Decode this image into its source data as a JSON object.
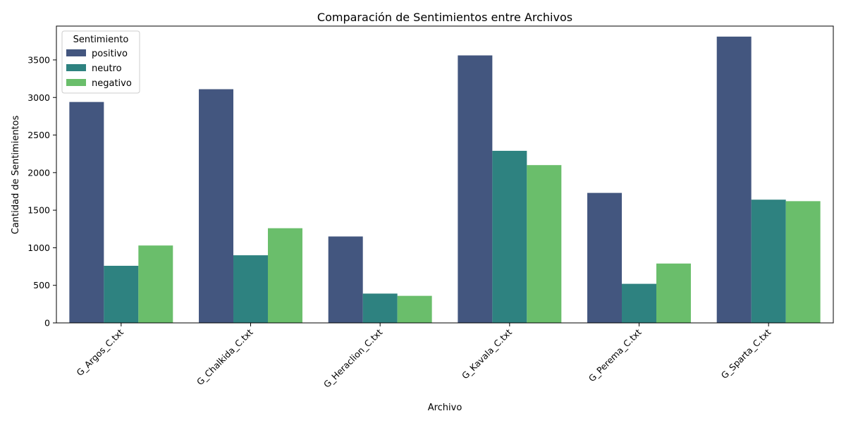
{
  "chart_data": {
    "type": "bar",
    "title": "Comparación de Sentimientos entre Archivos",
    "xlabel": "Archivo",
    "ylabel": "Cantidad de Sentimientos",
    "categories": [
      "G_Argos_C.txt",
      "G_Chalkida_C.txt",
      "G_Heraclion_C.txt",
      "G_Kavala_C.txt",
      "G_Perema_C.txt",
      "G_Sparta_C.txt"
    ],
    "series": [
      {
        "name": "positivo",
        "color": "#43567f",
        "values": [
          2940,
          3110,
          1150,
          3560,
          1730,
          3810
        ]
      },
      {
        "name": "neutro",
        "color": "#2e8280",
        "values": [
          760,
          900,
          390,
          2290,
          520,
          1640
        ]
      },
      {
        "name": "negativo",
        "color": "#6abe6b",
        "values": [
          1030,
          1260,
          360,
          2100,
          790,
          1620
        ]
      }
    ],
    "ylim": [
      0,
      3950
    ],
    "yticks": [
      0,
      500,
      1000,
      1500,
      2000,
      2500,
      3000,
      3500
    ],
    "legend": {
      "title": "Sentimiento",
      "position": "top-left"
    },
    "grid": false
  }
}
